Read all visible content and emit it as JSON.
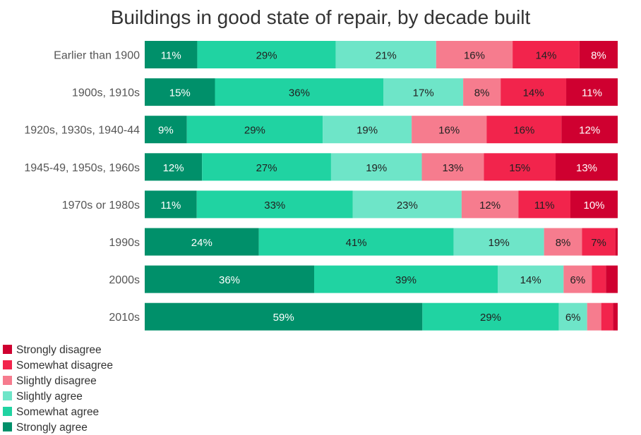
{
  "chart_data": {
    "type": "bar",
    "orientation": "horizontal",
    "stacked": true,
    "normalized": true,
    "title": "Buildings in good state of repair, by decade built",
    "xlabel": "",
    "ylabel": "",
    "grid": false,
    "legend_position": "bottom-left",
    "categories": [
      "Earlier than 1900",
      "1900s, 1910s",
      "1920s, 1930s, 1940-44",
      "1945-49, 1950s, 1960s",
      "1970s or 1980s",
      "1990s",
      "2000s",
      "2010s"
    ],
    "series": [
      {
        "name": "Strongly agree",
        "color": "#00906a",
        "values": [
          11,
          15,
          9,
          12,
          11,
          24,
          36,
          59
        ]
      },
      {
        "name": "Somewhat agree",
        "color": "#20d3a2",
        "values": [
          29,
          36,
          29,
          27,
          33,
          41,
          39,
          29
        ]
      },
      {
        "name": "Slightly agree",
        "color": "#6ee5c8",
        "values": [
          21,
          17,
          19,
          19,
          23,
          19,
          14,
          6
        ]
      },
      {
        "name": "Slightly disagree",
        "color": "#f67c8e",
        "values": [
          16,
          8,
          16,
          13,
          12,
          8,
          6,
          3
        ]
      },
      {
        "name": "Somewhat disagree",
        "color": "#f2244c",
        "values": [
          14,
          14,
          16,
          15,
          11,
          7,
          3,
          2.5
        ]
      },
      {
        "name": "Strongly disagree",
        "color": "#cf0030",
        "values": [
          8,
          11,
          12,
          13,
          10,
          0.5,
          2.5,
          1
        ]
      }
    ],
    "data_labels": [
      [
        "11%",
        "29%",
        "21%",
        "16%",
        "14%",
        "8%"
      ],
      [
        "15%",
        "36%",
        "17%",
        "8%",
        "14%",
        "11%"
      ],
      [
        "9%",
        "29%",
        "19%",
        "16%",
        "16%",
        "12%"
      ],
      [
        "12%",
        "27%",
        "19%",
        "13%",
        "15%",
        "13%"
      ],
      [
        "11%",
        "33%",
        "23%",
        "12%",
        "11%",
        "10%"
      ],
      [
        "24%",
        "41%",
        "19%",
        "8%",
        "7%",
        ""
      ],
      [
        "36%",
        "39%",
        "14%",
        "6%",
        "",
        ""
      ],
      [
        "59%",
        "29%",
        "6%",
        "",
        "",
        ""
      ]
    ],
    "legend_order": [
      "Strongly disagree",
      "Somewhat disagree",
      "Slightly disagree",
      "Slightly agree",
      "Somewhat agree",
      "Strongly agree"
    ]
  }
}
